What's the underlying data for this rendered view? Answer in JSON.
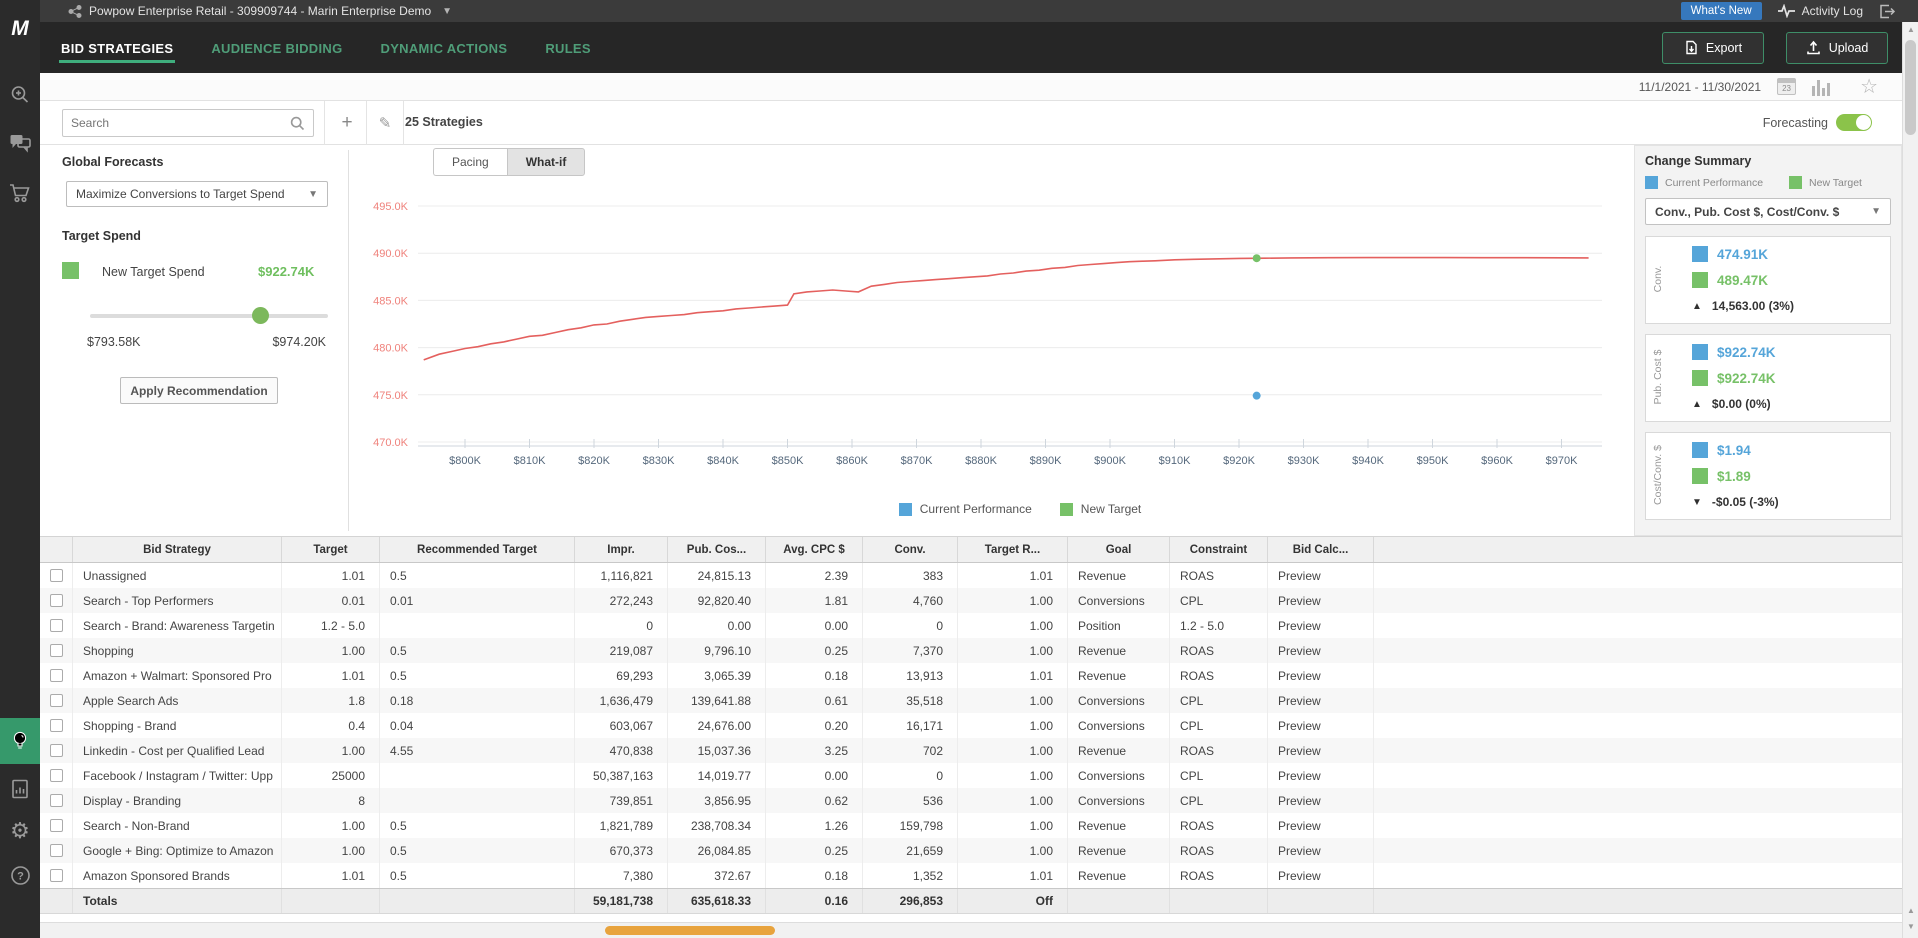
{
  "colors": {
    "accent_green": "#3fae7d",
    "toggle_green": "#8bc34a",
    "blue": "#55a5d9",
    "series_green": "#77c168",
    "line_red": "#e4605e",
    "whats_new_blue": "#3678bd",
    "scroll_orange": "#e8a33d",
    "sidebar_active_green": "#36996b"
  },
  "account": {
    "title": "Powpow Enterprise Retail - 309909744 - Marin Enterprise Demo",
    "whats_new": "What's New",
    "activity_log": "Activity Log"
  },
  "nav": {
    "tabs": [
      {
        "label": "BID STRATEGIES",
        "active": true
      },
      {
        "label": "AUDIENCE BIDDING",
        "active": false
      },
      {
        "label": "DYNAMIC ACTIONS",
        "active": false
      },
      {
        "label": "RULES",
        "active": false
      }
    ],
    "export_label": "Export",
    "upload_label": "Upload"
  },
  "datebar": {
    "range": "11/1/2021 - 11/30/2021",
    "calendar_day": "23"
  },
  "toolbar": {
    "search_placeholder": "Search",
    "strategies_count": "25 Strategies",
    "forecasting_label": "Forecasting",
    "forecasting_on": true
  },
  "forecast_panel": {
    "title": "Global Forecasts",
    "objective": "Maximize Conversions to Target Spend",
    "target_spend_title": "Target Spend",
    "new_target_label": "New Target Spend",
    "new_target_value": "$922.74K",
    "slider_min": "$793.58K",
    "slider_max": "$974.20K",
    "slider_pos_pct": 71.5,
    "apply_button": "Apply Recommendation"
  },
  "chart": {
    "tabs": [
      {
        "label": "Pacing",
        "active": false
      },
      {
        "label": "What-if",
        "active": true
      }
    ],
    "legend": [
      {
        "label": "Current Performance",
        "color": "#55a5d9"
      },
      {
        "label": "New Target",
        "color": "#77c168"
      }
    ]
  },
  "chart_data": {
    "type": "line",
    "title": "",
    "xlabel": "",
    "ylabel": "",
    "x_ticks": [
      "$800K",
      "$810K",
      "$820K",
      "$830K",
      "$840K",
      "$850K",
      "$860K",
      "$870K",
      "$880K",
      "$890K",
      "$900K",
      "$910K",
      "$920K",
      "$930K",
      "$940K",
      "$950K",
      "$960K",
      "$970K"
    ],
    "y_ticks": [
      "470.0K",
      "475.0K",
      "480.0K",
      "485.0K",
      "490.0K",
      "495.0K"
    ],
    "xlim": [
      793.58,
      974.2
    ],
    "ylim": [
      470,
      495
    ],
    "grid": true,
    "legend_position": "bottom",
    "series": [
      {
        "name": "What-if forecast",
        "type": "line",
        "color": "#e4605e",
        "points": [
          [
            793.6,
            478.7
          ],
          [
            796,
            479.3
          ],
          [
            798,
            479.6
          ],
          [
            800,
            479.9
          ],
          [
            802,
            480.1
          ],
          [
            804,
            480.4
          ],
          [
            806,
            480.6
          ],
          [
            808,
            480.9
          ],
          [
            810,
            481.2
          ],
          [
            812,
            481.3
          ],
          [
            814,
            481.6
          ],
          [
            816,
            481.9
          ],
          [
            818,
            482.1
          ],
          [
            820,
            482.4
          ],
          [
            822,
            482.5
          ],
          [
            824,
            482.8
          ],
          [
            826,
            483.0
          ],
          [
            828,
            483.2
          ],
          [
            830,
            483.3
          ],
          [
            832,
            483.4
          ],
          [
            834,
            483.5
          ],
          [
            836,
            483.7
          ],
          [
            838,
            483.8
          ],
          [
            840,
            483.9
          ],
          [
            842,
            484.1
          ],
          [
            844,
            484.2
          ],
          [
            846,
            484.3
          ],
          [
            848,
            484.4
          ],
          [
            850,
            484.5
          ],
          [
            851,
            485.7
          ],
          [
            853,
            485.9
          ],
          [
            855,
            486.0
          ],
          [
            857,
            486.1
          ],
          [
            859,
            486.0
          ],
          [
            861,
            485.9
          ],
          [
            863,
            486.5
          ],
          [
            865,
            486.7
          ],
          [
            867,
            486.9
          ],
          [
            869,
            487.0
          ],
          [
            871,
            487.1
          ],
          [
            873,
            487.2
          ],
          [
            875,
            487.3
          ],
          [
            877,
            487.4
          ],
          [
            879,
            487.5
          ],
          [
            881,
            487.6
          ],
          [
            883,
            487.8
          ],
          [
            885,
            487.9
          ],
          [
            887,
            488.1
          ],
          [
            889,
            488.2
          ],
          [
            891,
            488.4
          ],
          [
            893,
            488.5
          ],
          [
            895,
            488.7
          ],
          [
            897,
            488.8
          ],
          [
            899,
            488.9
          ],
          [
            901,
            489.0
          ],
          [
            903,
            489.1
          ],
          [
            905,
            489.15
          ],
          [
            907,
            489.2
          ],
          [
            910,
            489.3
          ],
          [
            913,
            489.35
          ],
          [
            916,
            489.4
          ],
          [
            920,
            489.45
          ],
          [
            924,
            489.47
          ],
          [
            928,
            489.5
          ],
          [
            934,
            489.52
          ],
          [
            940,
            489.53
          ],
          [
            946,
            489.53
          ],
          [
            952,
            489.53
          ],
          [
            958,
            489.52
          ],
          [
            964,
            489.52
          ],
          [
            970,
            489.51
          ],
          [
            974.2,
            489.5
          ]
        ]
      },
      {
        "name": "Current Performance",
        "type": "point",
        "color": "#55a5d9",
        "x": 922.74,
        "y": 474.91
      },
      {
        "name": "New Target",
        "type": "point",
        "color": "#77c168",
        "x": 922.74,
        "y": 489.47
      }
    ]
  },
  "change_summary": {
    "title": "Change Summary",
    "legend": [
      {
        "label": "Current Performance",
        "color": "#55a5d9"
      },
      {
        "label": "New Target",
        "color": "#77c168"
      }
    ],
    "metric_select": "Conv., Pub. Cost $, Cost/Conv. $",
    "cards": [
      {
        "metric": "Conv.",
        "current": "474.91K",
        "target": "489.47K",
        "delta": "14,563.00 (3%)",
        "direction": "up"
      },
      {
        "metric": "Pub. Cost $",
        "current": "$922.74K",
        "target": "$922.74K",
        "delta": "$0.00 (0%)",
        "direction": "up"
      },
      {
        "metric": "Cost/Conv. $",
        "current": "$1.94",
        "target": "$1.89",
        "delta": "-$0.05 (-3%)",
        "direction": "down"
      }
    ]
  },
  "table": {
    "columns": [
      {
        "label": "Bid Strategy",
        "align": "left"
      },
      {
        "label": "Target",
        "align": "right"
      },
      {
        "label": "Recommended Target",
        "align": "left"
      },
      {
        "label": "Impr.",
        "align": "right"
      },
      {
        "label": "Pub. Cos...",
        "align": "right"
      },
      {
        "label": "Avg. CPC $",
        "align": "right"
      },
      {
        "label": "Conv.",
        "align": "right"
      },
      {
        "label": "Target R...",
        "align": "right"
      },
      {
        "label": "Goal",
        "align": "left"
      },
      {
        "label": "Constraint",
        "align": "left"
      },
      {
        "label": "Bid Calc...",
        "align": "left"
      }
    ],
    "rows": [
      [
        "Unassigned",
        "1.01",
        "0.5",
        "1,116,821",
        "24,815.13",
        "2.39",
        "383",
        "1.01",
        "Revenue",
        "ROAS",
        "Preview"
      ],
      [
        "Search - Top Performers",
        "0.01",
        "0.01",
        "272,243",
        "92,820.40",
        "1.81",
        "4,760",
        "1.00",
        "Conversions",
        "CPL",
        "Preview"
      ],
      [
        "Search - Brand: Awareness Targetin",
        "1.2 - 5.0",
        "",
        "0",
        "0.00",
        "0.00",
        "0",
        "1.00",
        "Position",
        "1.2 - 5.0",
        "Preview"
      ],
      [
        "Shopping",
        "1.00",
        "0.5",
        "219,087",
        "9,796.10",
        "0.25",
        "7,370",
        "1.00",
        "Revenue",
        "ROAS",
        "Preview"
      ],
      [
        "Amazon + Walmart: Sponsored Pro",
        "1.01",
        "0.5",
        "69,293",
        "3,065.39",
        "0.18",
        "13,913",
        "1.01",
        "Revenue",
        "ROAS",
        "Preview"
      ],
      [
        "Apple Search Ads",
        "1.8",
        "0.18",
        "1,636,479",
        "139,641.88",
        "0.61",
        "35,518",
        "1.00",
        "Conversions",
        "CPL",
        "Preview"
      ],
      [
        "Shopping - Brand",
        "0.4",
        "0.04",
        "603,067",
        "24,676.00",
        "0.20",
        "16,171",
        "1.00",
        "Conversions",
        "CPL",
        "Preview"
      ],
      [
        "Linkedin - Cost per Qualified Lead",
        "1.00",
        "4.55",
        "470,838",
        "15,037.36",
        "3.25",
        "702",
        "1.00",
        "Revenue",
        "ROAS",
        "Preview"
      ],
      [
        "Facebook / Instagram / Twitter: Upp",
        "25000",
        "",
        "50,387,163",
        "14,019.77",
        "0.00",
        "0",
        "1.00",
        "Conversions",
        "CPL",
        "Preview"
      ],
      [
        "Display - Branding",
        "8",
        "",
        "739,851",
        "3,856.95",
        "0.62",
        "536",
        "1.00",
        "Conversions",
        "CPL",
        "Preview"
      ],
      [
        "Search - Non-Brand",
        "1.00",
        "0.5",
        "1,821,789",
        "238,708.34",
        "1.26",
        "159,798",
        "1.00",
        "Revenue",
        "ROAS",
        "Preview"
      ],
      [
        "Google + Bing: Optimize to Amazon",
        "1.00",
        "0.5",
        "670,373",
        "26,084.85",
        "0.25",
        "21,659",
        "1.00",
        "Revenue",
        "ROAS",
        "Preview"
      ],
      [
        "Amazon Sponsored Brands",
        "1.01",
        "0.5",
        "7,380",
        "372.67",
        "0.18",
        "1,352",
        "1.01",
        "Revenue",
        "ROAS",
        "Preview"
      ]
    ],
    "totals": [
      "Totals",
      "",
      "",
      "59,181,738",
      "635,618.33",
      "0.16",
      "296,853",
      "Off",
      "",
      "",
      ""
    ]
  }
}
